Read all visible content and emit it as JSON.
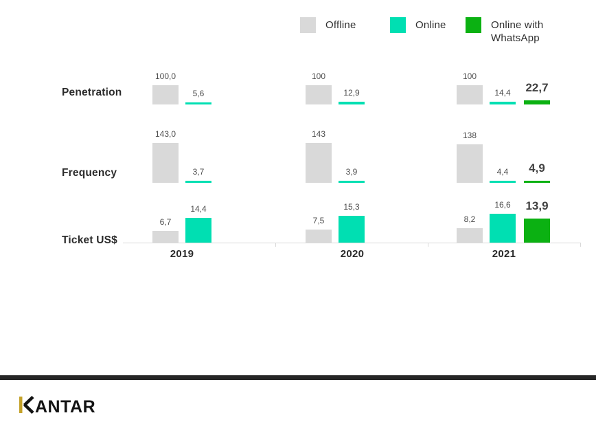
{
  "legend": [
    {
      "label": "Offline",
      "color": "#d9d9d9"
    },
    {
      "label": "Online",
      "color": "#00dfb2"
    },
    {
      "label": "Online with WhatsApp",
      "color": "#0bb112"
    }
  ],
  "chart_data": {
    "type": "bar",
    "title": "",
    "categories": [
      "2019",
      "2020",
      "2021"
    ],
    "series_names": [
      "Offline",
      "Online",
      "Online with WhatsApp"
    ],
    "legend_position": "top",
    "grid": false,
    "rows": [
      {
        "label": "Penetration",
        "groups": [
          {
            "category": "2019",
            "values": [
              100.0,
              5.6,
              null
            ],
            "labels": [
              "100,0",
              "5,6",
              null
            ]
          },
          {
            "category": "2020",
            "values": [
              100,
              12.9,
              null
            ],
            "labels": [
              "100",
              "12,9",
              null
            ]
          },
          {
            "category": "2021",
            "values": [
              100,
              14.4,
              22.7
            ],
            "labels": [
              "100",
              "14,4",
              "22,7"
            ]
          }
        ]
      },
      {
        "label": "Frequency",
        "groups": [
          {
            "category": "2019",
            "values": [
              143.0,
              3.7,
              null
            ],
            "labels": [
              "143,0",
              "3,7",
              null
            ]
          },
          {
            "category": "2020",
            "values": [
              143,
              3.9,
              null
            ],
            "labels": [
              "143",
              "3,9",
              null
            ]
          },
          {
            "category": "2021",
            "values": [
              138,
              4.4,
              4.9
            ],
            "labels": [
              "138",
              "4,4",
              "4,9"
            ]
          }
        ]
      },
      {
        "label": "Ticket US$",
        "groups": [
          {
            "category": "2019",
            "values": [
              6.7,
              14.4,
              null
            ],
            "labels": [
              "6,7",
              "14,4",
              null
            ]
          },
          {
            "category": "2020",
            "values": [
              7.5,
              15.3,
              null
            ],
            "labels": [
              "7,5",
              "15,3",
              null
            ]
          },
          {
            "category": "2021",
            "values": [
              8.2,
              16.6,
              13.9
            ],
            "labels": [
              "8,2",
              "16,6",
              "13,9"
            ]
          }
        ]
      }
    ]
  },
  "brand": {
    "logo_text": "KANTAR",
    "logo_letters": "ANTAR",
    "logo_accent_color": "#c4a22a",
    "logo_text_color": "#131313"
  },
  "colors": {
    "offline": "#d9d9d9",
    "online": "#00dfb2",
    "online_whatsapp": "#0bb112",
    "axis": "#d9d9d9",
    "value_text": "#4d4d4d",
    "heading_text": "#2b2b2b",
    "divider": "#262626"
  }
}
